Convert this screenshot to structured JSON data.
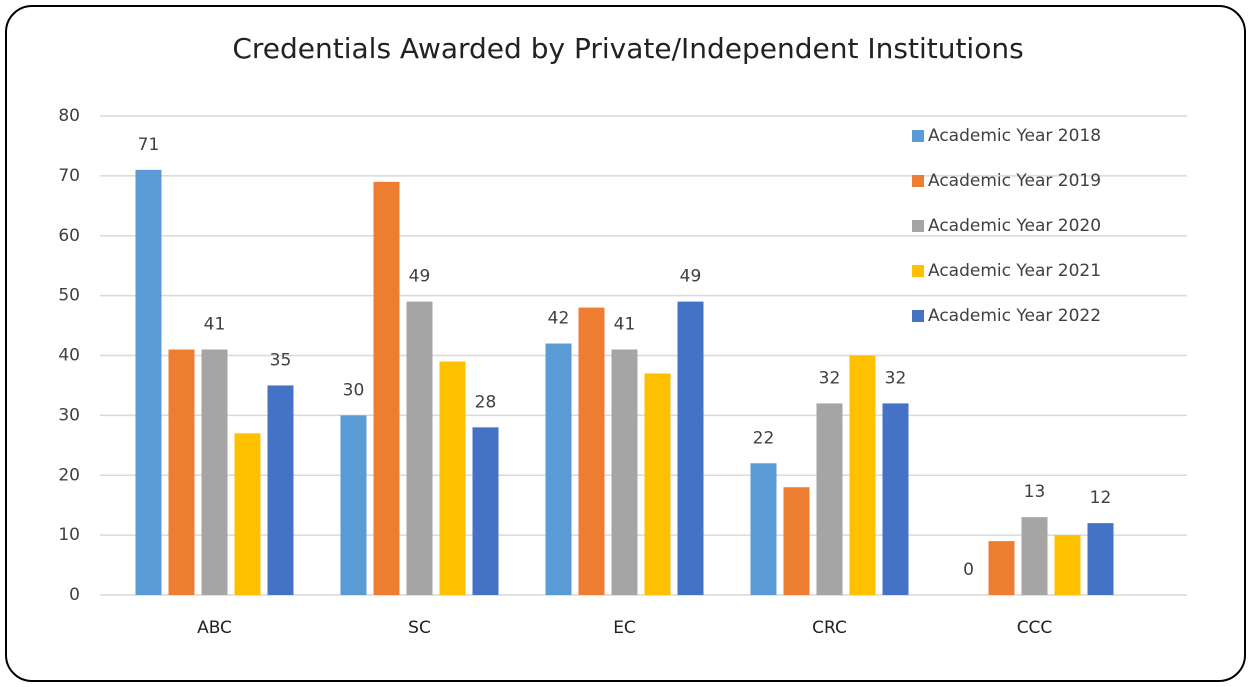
{
  "chart_data": {
    "type": "bar",
    "title": "Credentials Awarded by Private/Independent Institutions",
    "categories": [
      "ABC",
      "SC",
      "EC",
      "CRC",
      "CCC"
    ],
    "series": [
      {
        "name": "Academic Year 2018",
        "color": "#5b9bd5",
        "values": [
          71,
          30,
          42,
          22,
          0
        ],
        "show_labels": true
      },
      {
        "name": "Academic Year 2019",
        "color": "#ed7d31",
        "values": [
          41,
          69,
          48,
          18,
          9
        ],
        "show_labels": false
      },
      {
        "name": "Academic Year 2020",
        "color": "#a5a5a5",
        "values": [
          41,
          49,
          41,
          32,
          13
        ],
        "show_labels": true
      },
      {
        "name": "Academic Year 2021",
        "color": "#ffc000",
        "values": [
          27,
          39,
          37,
          40,
          10
        ],
        "show_labels": false
      },
      {
        "name": "Academic Year 2022",
        "color": "#4472c4",
        "values": [
          35,
          28,
          49,
          32,
          12
        ],
        "show_labels": true
      }
    ],
    "ylim": [
      0,
      80
    ],
    "yticks": [
      0,
      10,
      20,
      30,
      40,
      50,
      60,
      70,
      80
    ],
    "grid": true,
    "legend": "top-right"
  }
}
